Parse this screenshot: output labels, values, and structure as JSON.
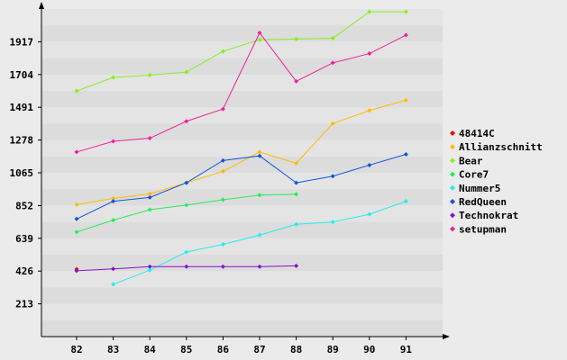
{
  "chart_data": {
    "type": "line",
    "title": "",
    "xlabel": "",
    "ylabel": "",
    "categories": [
      "82",
      "83",
      "84",
      "85",
      "86",
      "87",
      "88",
      "89",
      "90",
      "91"
    ],
    "yticks": [
      "213",
      "426",
      "639",
      "852",
      "1065",
      "1278",
      "1491",
      "1704",
      "1917"
    ],
    "ylim": [
      0,
      2130
    ],
    "grid": "horizontal bands",
    "legend_position": "right",
    "series": [
      {
        "name": "48414C",
        "color": "#ff0000",
        "values": [
          439,
          null,
          null,
          null,
          null,
          null,
          null,
          null,
          null,
          null
        ]
      },
      {
        "name": "Allianzschnitt",
        "color": "#ffbb00",
        "values": [
          858,
          898,
          928,
          1000,
          1075,
          1200,
          1127,
          1385,
          1470,
          1537
        ]
      },
      {
        "name": "Bear",
        "color": "#88ee22",
        "values": [
          1597,
          1685,
          1700,
          1720,
          1855,
          1930,
          1935,
          1940,
          2112,
          2112
        ]
      },
      {
        "name": "Core7",
        "color": "#22ee55",
        "values": [
          680,
          757,
          825,
          855,
          890,
          920,
          925,
          null,
          null,
          null
        ]
      },
      {
        "name": "Nummer5",
        "color": "#22eeee",
        "values": [
          null,
          340,
          432,
          550,
          600,
          660,
          730,
          745,
          795,
          880
        ]
      },
      {
        "name": "RedQueen",
        "color": "#1155dd",
        "values": [
          765,
          880,
          905,
          1000,
          1145,
          1175,
          1000,
          1043,
          1115,
          1185
        ]
      },
      {
        "name": "Technokrat",
        "color": "#8811cc",
        "values": [
          428,
          440,
          455,
          455,
          455,
          455,
          460,
          null,
          null,
          null
        ]
      },
      {
        "name": "setupman",
        "color": "#ee2299",
        "values": [
          1200,
          1270,
          1290,
          1400,
          1480,
          1975,
          1660,
          1780,
          1840,
          1960
        ]
      }
    ]
  }
}
